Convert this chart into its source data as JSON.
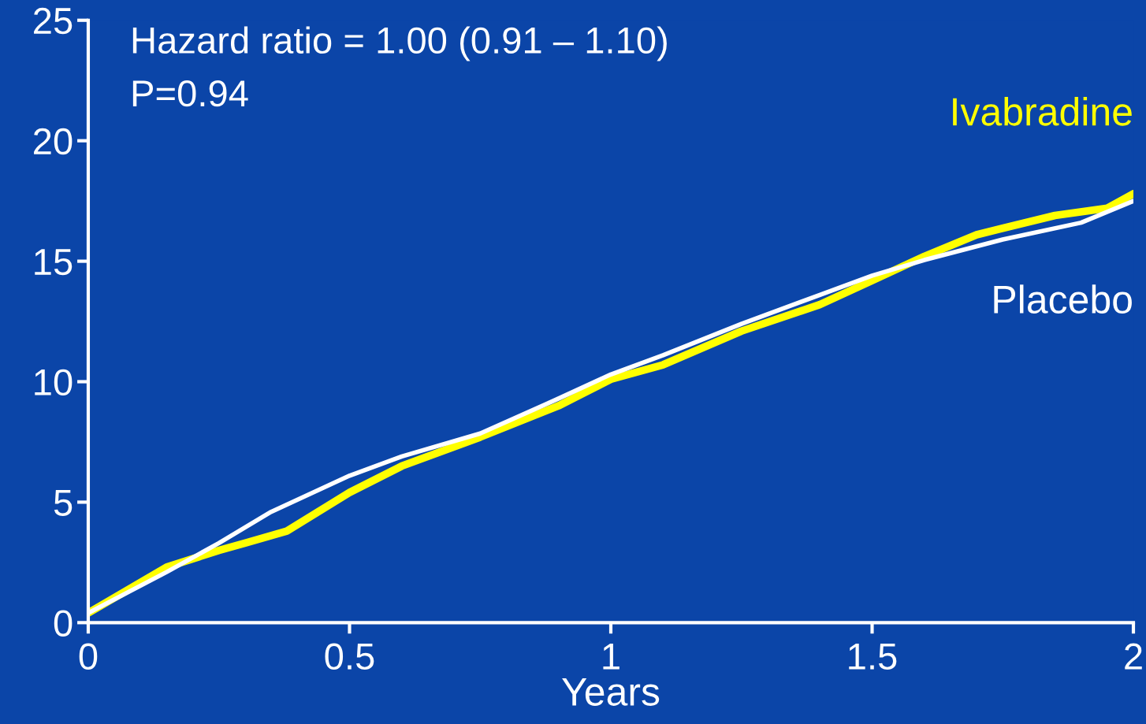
{
  "chart_data": {
    "type": "line",
    "xlabel": "Years",
    "annotations": [
      "Hazard ratio = 1.00 (0.91 – 1.10)",
      "P=0.94"
    ],
    "xlim": [
      0,
      2
    ],
    "ylim": [
      0,
      25
    ],
    "xticks": [
      0,
      0.5,
      1,
      1.5,
      2
    ],
    "yticks": [
      0,
      5,
      10,
      15,
      20,
      25
    ],
    "grid": false,
    "legend": false,
    "series": [
      {
        "name": "Ivabradine",
        "color": "#ffff00",
        "x": [
          0,
          0.15,
          0.25,
          0.3,
          0.38,
          0.5,
          0.6,
          0.75,
          0.9,
          1.0,
          1.1,
          1.25,
          1.4,
          1.5,
          1.6,
          1.7,
          1.85,
          1.95,
          2.0
        ],
        "values": [
          0.4,
          2.3,
          3.0,
          3.3,
          3.8,
          5.4,
          6.5,
          7.7,
          9.0,
          10.1,
          10.7,
          12.1,
          13.2,
          14.2,
          15.2,
          16.1,
          16.9,
          17.2,
          17.8
        ]
      },
      {
        "name": "Placebo",
        "color": "#ffffff",
        "x": [
          0,
          0.15,
          0.25,
          0.35,
          0.5,
          0.6,
          0.75,
          0.9,
          1.0,
          1.1,
          1.25,
          1.4,
          1.5,
          1.6,
          1.75,
          1.9,
          2.0
        ],
        "values": [
          0.4,
          2.1,
          3.3,
          4.6,
          6.1,
          6.9,
          7.85,
          9.3,
          10.3,
          11.1,
          12.4,
          13.6,
          14.4,
          15.05,
          15.9,
          16.6,
          17.5
        ]
      }
    ]
  }
}
